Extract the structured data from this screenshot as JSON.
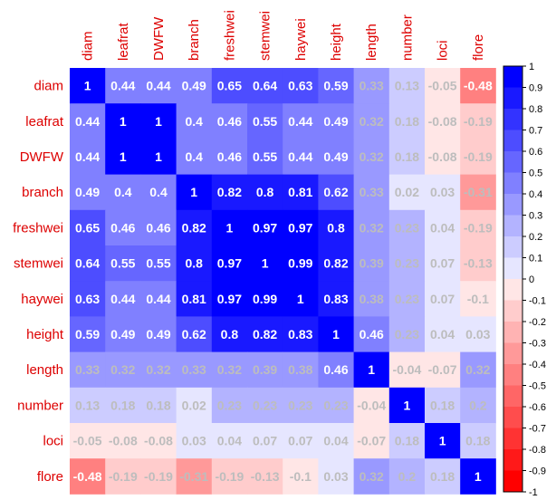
{
  "chart_data": {
    "type": "heatmap",
    "title": "",
    "labels": [
      "diam",
      "leafrat",
      "DWFW",
      "branch",
      "freshwei",
      "stemwei",
      "haywei",
      "height",
      "length",
      "number",
      "loci",
      "flore"
    ],
    "matrix": [
      [
        1,
        0.44,
        0.44,
        0.49,
        0.65,
        0.64,
        0.63,
        0.59,
        0.33,
        0.13,
        -0.05,
        -0.48
      ],
      [
        0.44,
        1,
        1,
        0.4,
        0.46,
        0.55,
        0.44,
        0.49,
        0.32,
        0.18,
        -0.08,
        -0.19
      ],
      [
        0.44,
        1,
        1,
        0.4,
        0.46,
        0.55,
        0.44,
        0.49,
        0.32,
        0.18,
        -0.08,
        -0.19
      ],
      [
        0.49,
        0.4,
        0.4,
        1,
        0.82,
        0.8,
        0.81,
        0.62,
        0.33,
        0.02,
        0.03,
        -0.31
      ],
      [
        0.65,
        0.46,
        0.46,
        0.82,
        1,
        0.97,
        0.97,
        0.8,
        0.32,
        0.23,
        0.04,
        -0.19
      ],
      [
        0.64,
        0.55,
        0.55,
        0.8,
        0.97,
        1,
        0.99,
        0.82,
        0.39,
        0.23,
        0.07,
        -0.13
      ],
      [
        0.63,
        0.44,
        0.44,
        0.81,
        0.97,
        0.99,
        1,
        0.83,
        0.38,
        0.23,
        0.07,
        -0.1
      ],
      [
        0.59,
        0.49,
        0.49,
        0.62,
        0.8,
        0.82,
        0.83,
        1,
        0.46,
        0.23,
        0.04,
        0.03
      ],
      [
        0.33,
        0.32,
        0.32,
        0.33,
        0.32,
        0.39,
        0.38,
        0.46,
        1,
        -0.04,
        -0.07,
        0.32
      ],
      [
        0.13,
        0.18,
        0.18,
        0.02,
        0.23,
        0.23,
        0.23,
        0.23,
        -0.04,
        1,
        0.18,
        0.2
      ],
      [
        -0.05,
        -0.08,
        -0.08,
        0.03,
        0.04,
        0.07,
        0.07,
        0.04,
        -0.07,
        0.18,
        1,
        0.18
      ],
      [
        -0.48,
        -0.19,
        -0.19,
        -0.31,
        -0.19,
        -0.13,
        -0.1,
        0.03,
        0.32,
        0.2,
        0.18,
        1
      ]
    ],
    "value_range": [
      -1,
      1
    ],
    "colorbar_ticks": [
      "1",
      "0.9",
      "0.8",
      "0.7",
      "0.6",
      "0.5",
      "0.4",
      "0.3",
      "0.2",
      "0.1",
      "0",
      "-0.1",
      "-0.2",
      "-0.3",
      "-0.4",
      "-0.5",
      "-0.6",
      "-0.7",
      "-0.8",
      "-0.9",
      "-1"
    ],
    "colors": {
      "positive": "#0000ff",
      "negative": "#ff0000",
      "zero": "#ffffff",
      "label": "#dd0000",
      "value_text": "#ffffff",
      "value_text_faint": "#bdbdbd"
    }
  }
}
